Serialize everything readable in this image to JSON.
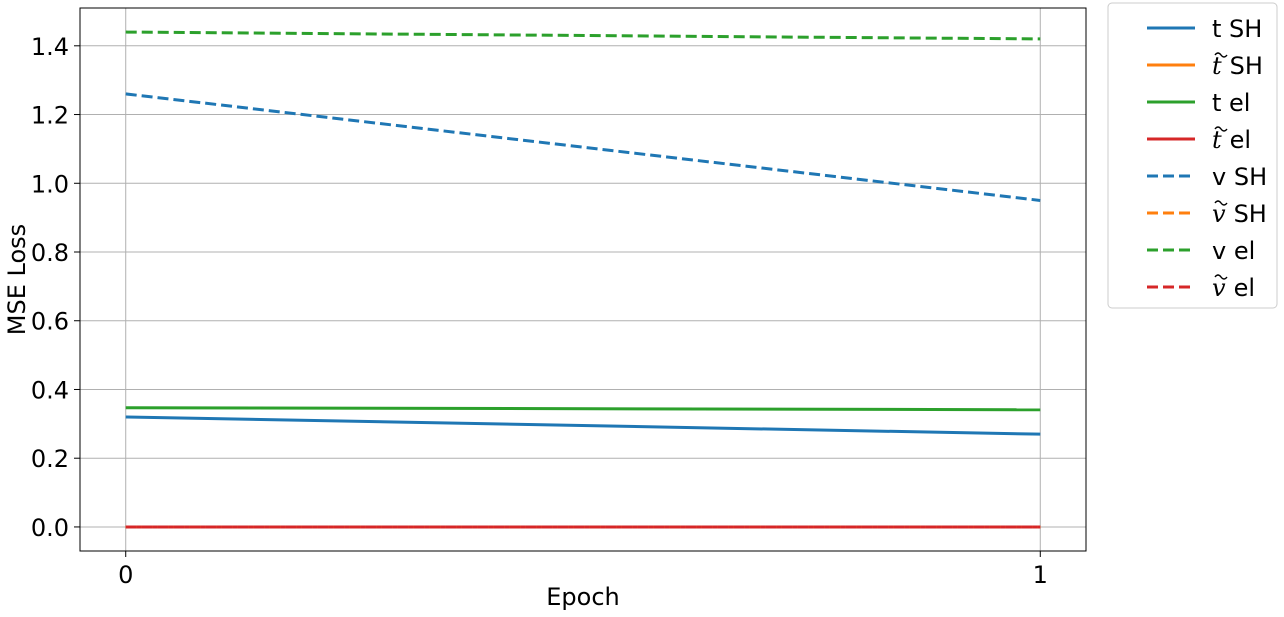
{
  "chart_data": {
    "type": "line",
    "title": "",
    "xlabel": "Epoch",
    "ylabel": "MSE Loss",
    "x": [
      0,
      1
    ],
    "x_ticks": [
      "0",
      "1"
    ],
    "xlim": [
      -0.05,
      1.05
    ],
    "ylim": [
      -0.07,
      1.51
    ],
    "y_ticks": [
      "0.0",
      "0.2",
      "0.4",
      "0.6",
      "0.8",
      "1.0",
      "1.2",
      "1.4"
    ],
    "grid": true,
    "legend_position": "outside-right-top",
    "series": [
      {
        "name": "t SH",
        "base": "t",
        "tilde": false,
        "suffix": "SH",
        "values": [
          0.32,
          0.27
        ],
        "color": "#1f77b4",
        "linestyle": "solid"
      },
      {
        "name": "t̃ SH",
        "base": "t",
        "tilde": true,
        "suffix": "SH",
        "values": [
          0.0,
          0.0
        ],
        "color": "#ff7f0e",
        "linestyle": "solid"
      },
      {
        "name": "t el",
        "base": "t",
        "tilde": false,
        "suffix": "el",
        "values": [
          0.347,
          0.341
        ],
        "color": "#2ca02c",
        "linestyle": "solid"
      },
      {
        "name": "t̃ el",
        "base": "t",
        "tilde": true,
        "suffix": "el",
        "values": [
          0.0,
          0.0
        ],
        "color": "#d62728",
        "linestyle": "solid"
      },
      {
        "name": "v SH",
        "base": "v",
        "tilde": false,
        "suffix": "SH",
        "values": [
          1.26,
          0.95
        ],
        "color": "#1f77b4",
        "linestyle": "dashed"
      },
      {
        "name": "ṽ SH",
        "base": "v",
        "tilde": true,
        "suffix": "SH",
        "values": [
          0.0,
          0.0
        ],
        "color": "#ff7f0e",
        "linestyle": "dashed"
      },
      {
        "name": "v el",
        "base": "v",
        "tilde": false,
        "suffix": "el",
        "values": [
          1.44,
          1.42
        ],
        "color": "#2ca02c",
        "linestyle": "dashed"
      },
      {
        "name": "ṽ el",
        "base": "v",
        "tilde": true,
        "suffix": "el",
        "values": [
          0.0,
          0.0
        ],
        "color": "#d62728",
        "linestyle": "dashed"
      }
    ]
  }
}
